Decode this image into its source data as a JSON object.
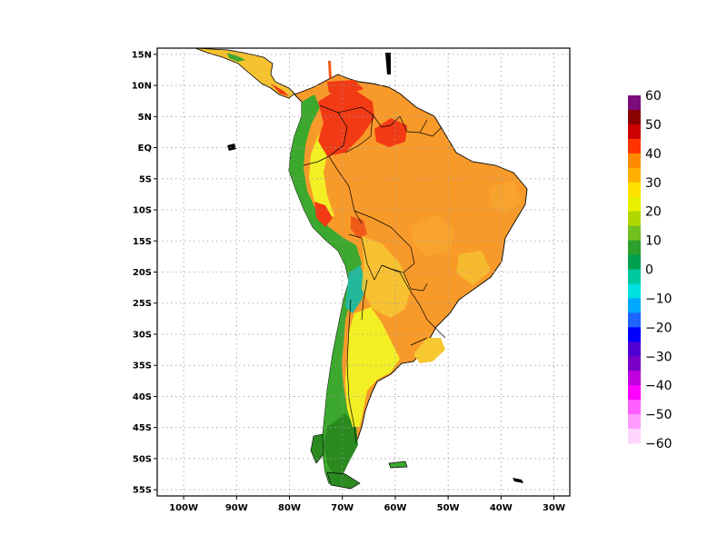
{
  "map": {
    "lat_labels": [
      "15N",
      "10N",
      "5N",
      "EQ",
      "5S",
      "10S",
      "15S",
      "20S",
      "25S",
      "30S",
      "35S",
      "40S",
      "45S",
      "50S",
      "55S"
    ],
    "lon_labels": [
      "100W",
      "90W",
      "80W",
      "70W",
      "60W",
      "50W",
      "40W",
      "30W"
    ],
    "lat_range": [
      -56,
      16
    ],
    "lon_range": [
      -105,
      -27
    ],
    "grid": "dotted",
    "projection": "lat-lon"
  },
  "colorbar": {
    "labels": [
      "60",
      "50",
      "40",
      "30",
      "20",
      "10",
      "0",
      "−10",
      "−20",
      "−30",
      "−40",
      "−50",
      "−60"
    ],
    "colors": [
      "#7b0d7b",
      "#8b0000",
      "#cc0000",
      "#ff3300",
      "#ff8a00",
      "#ffb000",
      "#ffe000",
      "#e8f000",
      "#b0d800",
      "#70c020",
      "#2ca02c",
      "#00a050",
      "#00c8a0",
      "#00e0e0",
      "#00a8ff",
      "#1e64ff",
      "#0000ff",
      "#5000d0",
      "#7a00c8",
      "#c000e0",
      "#ff00ff",
      "#ff60ff",
      "#ff9cff",
      "#ffd6ff"
    ],
    "placement": "right"
  },
  "field_colors": {
    "ocean": "#ffffff",
    "hot": "#f23a14",
    "warm": "#f89a2a",
    "mild": "#f7c832",
    "yellow": "#f2ef25",
    "green": "#3ca82e",
    "dark_green": "#2a8a20",
    "teal": "#24b89a",
    "coast": "#000000"
  }
}
